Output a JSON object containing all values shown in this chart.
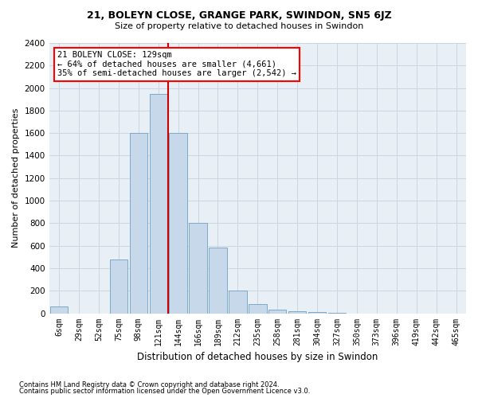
{
  "title1": "21, BOLEYN CLOSE, GRANGE PARK, SWINDON, SN5 6JZ",
  "title2": "Size of property relative to detached houses in Swindon",
  "xlabel": "Distribution of detached houses by size in Swindon",
  "ylabel": "Number of detached properties",
  "footnote1": "Contains HM Land Registry data © Crown copyright and database right 2024.",
  "footnote2": "Contains public sector information licensed under the Open Government Licence v3.0.",
  "annotation_line1": "21 BOLEYN CLOSE: 129sqm",
  "annotation_line2": "← 64% of detached houses are smaller (4,661)",
  "annotation_line3": "35% of semi-detached houses are larger (2,542) →",
  "bar_color": "#c8d8eb",
  "bar_edge_color": "#7aaaca",
  "vline_color": "#cc0000",
  "categories": [
    "6sqm",
    "29sqm",
    "52sqm",
    "75sqm",
    "98sqm",
    "121sqm",
    "144sqm",
    "166sqm",
    "189sqm",
    "212sqm",
    "235sqm",
    "258sqm",
    "281sqm",
    "304sqm",
    "327sqm",
    "350sqm",
    "373sqm",
    "396sqm",
    "419sqm",
    "442sqm",
    "465sqm"
  ],
  "values": [
    60,
    0,
    0,
    480,
    1600,
    1950,
    1600,
    800,
    580,
    200,
    80,
    30,
    20,
    10,
    5,
    0,
    0,
    0,
    0,
    0,
    0
  ],
  "ylim": [
    0,
    2400
  ],
  "yticks": [
    0,
    200,
    400,
    600,
    800,
    1000,
    1200,
    1400,
    1600,
    1800,
    2000,
    2200,
    2400
  ],
  "vline_position": 5.5,
  "grid_color": "#ccd6e0",
  "bg_color": "#e8eff5"
}
